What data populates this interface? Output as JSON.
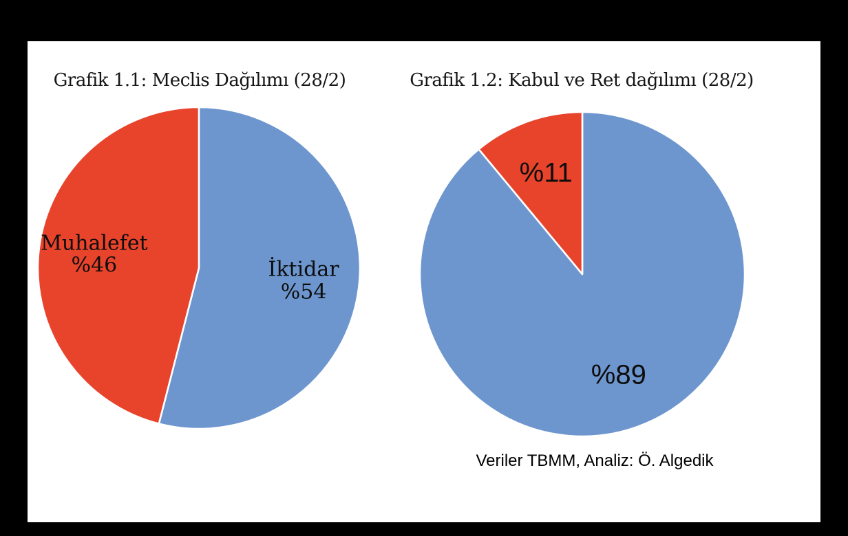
{
  "frame": {
    "background_color": "#000000",
    "panel_color": "#ffffff"
  },
  "colors": {
    "blue": "#6D96CF",
    "red": "#E8432B",
    "text": "#0d0d0d",
    "slice_divider": "#ffffff"
  },
  "caption": "Veriler TBMM, Analiz: Ö. Algedik",
  "chart_data": [
    {
      "type": "pie",
      "title": "Grafik 1.1: Meclis Dağılımı (28/2)",
      "start_angle_deg": 0,
      "direction": "clockwise",
      "legend_position": "none",
      "slices": [
        {
          "label_lines": [
            "İktidar",
            "%54"
          ],
          "value_pct": 54,
          "color": "#6D96CF"
        },
        {
          "label_lines": [
            "Muhalefet",
            "%46"
          ],
          "value_pct": 46,
          "color": "#E8432B"
        }
      ]
    },
    {
      "type": "pie",
      "title": "Grafik 1.2: Kabul ve Ret dağılımı (28/2)",
      "start_angle_deg": 0,
      "direction": "clockwise",
      "legend_position": "none",
      "slices": [
        {
          "label_lines": [
            "%89"
          ],
          "value_pct": 89,
          "color": "#6D96CF"
        },
        {
          "label_lines": [
            "%11"
          ],
          "value_pct": 11,
          "color": "#E8432B"
        }
      ]
    }
  ]
}
